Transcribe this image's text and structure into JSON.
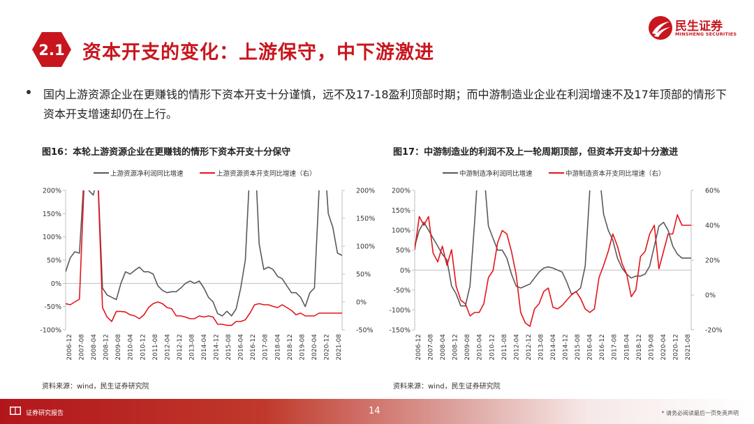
{
  "header": {
    "section_number": "2.1",
    "title": "资本开支的变化：上游保守，中下游激进",
    "logo_cn": "民生证券",
    "logo_en": "MINSHENG SECURITIES"
  },
  "bullet": {
    "text": "国内上游资源企业在更赚钱的情形下资本开支十分谨慎，远不及17-18盈利顶部时期；而中游制造业企业在利润增速不及17年顶部的情形下资本开支增速却仍在上行。"
  },
  "figures": [
    {
      "title": "图16：本轮上游资源企业在更赚钱的情形下资本开支十分保守",
      "source": "资料来源：wind，民生证券研究院"
    },
    {
      "title": "图17：中游制造业的利润不及上一轮周期顶部，但资本开支却十分激进",
      "source": "资料来源：wind，民生证券研究院"
    }
  ],
  "footer": {
    "label": "证券研究报告",
    "page_number": "14",
    "disclaimer": "* 请务必阅读最后一页免责声明"
  },
  "colors": {
    "brand_red": "#c8161e",
    "series_gray": "#595959",
    "series_red": "#e3141b"
  },
  "chart_data": [
    {
      "type": "line",
      "x": [
        "2006-12",
        "2007-03",
        "2007-06",
        "2007-09",
        "2007-12",
        "2008-03",
        "2008-06",
        "2008-09",
        "2008-12",
        "2009-03",
        "2009-06",
        "2009-09",
        "2009-12",
        "2010-03",
        "2010-06",
        "2010-09",
        "2010-12",
        "2011-03",
        "2011-06",
        "2011-09",
        "2011-12",
        "2012-03",
        "2012-06",
        "2012-09",
        "2012-12",
        "2013-03",
        "2013-06",
        "2013-09",
        "2013-12",
        "2014-03",
        "2014-06",
        "2014-09",
        "2014-12",
        "2015-03",
        "2015-06",
        "2015-09",
        "2015-12",
        "2016-03",
        "2016-06",
        "2016-09",
        "2016-12",
        "2017-03",
        "2017-06",
        "2017-09",
        "2017-12",
        "2018-03",
        "2018-06",
        "2018-09",
        "2018-12",
        "2019-03",
        "2019-06",
        "2019-09",
        "2019-12",
        "2020-03",
        "2020-06",
        "2020-09",
        "2020-12",
        "2021-03",
        "2021-06",
        "2021-09",
        "2021-12"
      ],
      "x_tick_labels": [
        "2006-12",
        "2007-08",
        "2008-04",
        "2008-12",
        "2009-08",
        "2010-04",
        "2010-12",
        "2011-08",
        "2012-04",
        "2012-12",
        "2013-08",
        "2014-04",
        "2014-12",
        "2015-08",
        "2016-04",
        "2016-12",
        "2017-08",
        "2018-04",
        "2018-12",
        "2019-08",
        "2020-04",
        "2020-12",
        "2021-08"
      ],
      "series": [
        {
          "name": "上游资源净利润同比增速",
          "axis": "left",
          "values": [
            25,
            55,
            68,
            65,
            230,
            200,
            190,
            230,
            -10,
            -25,
            -30,
            -35,
            0,
            25,
            20,
            28,
            35,
            25,
            25,
            20,
            -5,
            -15,
            -20,
            -18,
            -18,
            -10,
            0,
            5,
            0,
            5,
            -10,
            -30,
            -40,
            -65,
            -70,
            -60,
            -70,
            -55,
            -10,
            50,
            250,
            300,
            85,
            30,
            35,
            30,
            15,
            10,
            -5,
            -20,
            -20,
            -30,
            -50,
            -20,
            -10,
            200,
            300,
            150,
            120,
            65,
            60
          ]
        },
        {
          "name": "上游资源资本开支同比增速（右）",
          "axis": "right",
          "values": [
            -3,
            -5,
            0,
            5,
            210,
            250,
            250,
            220,
            -10,
            -27,
            -35,
            -17,
            -17,
            -18,
            -23,
            -25,
            -30,
            -23,
            -10,
            -3,
            0,
            -3,
            -10,
            -12,
            -25,
            -25,
            -27,
            -30,
            -30,
            -25,
            -27,
            -25,
            -27,
            -40,
            -40,
            -42,
            -42,
            -35,
            -35,
            -32,
            -20,
            -5,
            -3,
            -5,
            -5,
            -8,
            -10,
            -5,
            -10,
            -15,
            -23,
            -20,
            -25,
            -25,
            -25,
            -20,
            -20,
            -20,
            -20,
            -20,
            -20
          ]
        }
      ],
      "y_left": {
        "min": -100,
        "max": 200,
        "ticks": [
          "-100%",
          "-50%",
          "0%",
          "50%",
          "100%",
          "150%",
          "200%"
        ]
      },
      "y_right": {
        "min": -50,
        "max": 200,
        "ticks": [
          "-50%",
          "0%",
          "50%",
          "100%",
          "150%",
          "200%"
        ]
      },
      "legend": "top",
      "grid": false
    },
    {
      "type": "line",
      "x": [
        "2006-12",
        "2007-03",
        "2007-06",
        "2007-09",
        "2007-12",
        "2008-03",
        "2008-06",
        "2008-09",
        "2008-12",
        "2009-03",
        "2009-06",
        "2009-09",
        "2009-12",
        "2010-03",
        "2010-06",
        "2010-09",
        "2010-12",
        "2011-03",
        "2011-06",
        "2011-09",
        "2011-12",
        "2012-03",
        "2012-06",
        "2012-09",
        "2012-12",
        "2013-03",
        "2013-06",
        "2013-09",
        "2013-12",
        "2014-03",
        "2014-06",
        "2014-09",
        "2014-12",
        "2015-03",
        "2015-06",
        "2015-09",
        "2015-12",
        "2016-03",
        "2016-06",
        "2016-09",
        "2016-12",
        "2017-03",
        "2017-06",
        "2017-09",
        "2017-12",
        "2018-03",
        "2018-06",
        "2018-09",
        "2018-12",
        "2019-03",
        "2019-06",
        "2019-09",
        "2019-12",
        "2020-03",
        "2020-06",
        "2020-09",
        "2020-12",
        "2021-03",
        "2021-06",
        "2021-09",
        "2021-12"
      ],
      "x_tick_labels": [
        "2006-12",
        "2007-08",
        "2008-04",
        "2008-12",
        "2009-08",
        "2010-04",
        "2010-12",
        "2011-08",
        "2012-04",
        "2012-12",
        "2013-08",
        "2014-04",
        "2014-12",
        "2015-08",
        "2016-04",
        "2016-12",
        "2017-08",
        "2018-04",
        "2018-12",
        "2019-08",
        "2020-04",
        "2020-12",
        "2021-08"
      ],
      "series": [
        {
          "name": "中游制造净利润同比增速",
          "axis": "left",
          "values": [
            60,
            100,
            120,
            100,
            80,
            60,
            40,
            25,
            -40,
            -60,
            -90,
            -90,
            -40,
            120,
            300,
            250,
            110,
            80,
            50,
            50,
            30,
            -10,
            -40,
            -45,
            -40,
            -35,
            -20,
            -5,
            5,
            8,
            5,
            0,
            -5,
            -30,
            -60,
            -55,
            -45,
            10,
            200,
            300,
            250,
            140,
            100,
            75,
            30,
            5,
            -10,
            -20,
            -15,
            -15,
            -10,
            10,
            60,
            110,
            120,
            100,
            60,
            40,
            30,
            30,
            30
          ]
        },
        {
          "name": "中游制造资本开支同比增速（右）",
          "axis": "right",
          "values": [
            26,
            45,
            40,
            45,
            24,
            19,
            28,
            17,
            26,
            5,
            -3,
            -5,
            -12,
            -10,
            -10,
            -5,
            10,
            14,
            30,
            37,
            35,
            25,
            12,
            -10,
            -16,
            -18,
            -8,
            -5,
            2,
            4,
            -7,
            -8,
            -6,
            -3,
            0,
            2,
            -2,
            -8,
            -10,
            -8,
            10,
            17,
            25,
            35,
            28,
            18,
            12,
            -1,
            3,
            22,
            25,
            35,
            40,
            15,
            25,
            35,
            35,
            46,
            40,
            40,
            40
          ]
        }
      ],
      "y_left": {
        "min": -150,
        "max": 200,
        "ticks": [
          "-150%",
          "-100%",
          "-50%",
          "0%",
          "50%",
          "100%",
          "150%",
          "200%"
        ]
      },
      "y_right": {
        "min": -20,
        "max": 60,
        "ticks": [
          "-20%",
          "0%",
          "20%",
          "40%",
          "60%"
        ]
      },
      "legend": "top",
      "grid": false
    }
  ]
}
